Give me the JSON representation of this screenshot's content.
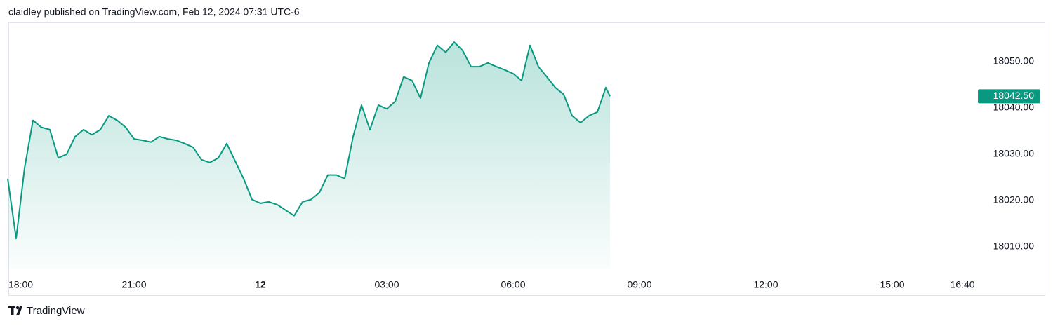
{
  "header": "claidley published on TradingView.com, Feb 12, 2024 07:31 UTC-6",
  "footer": {
    "brand": "TradingView"
  },
  "chart_data": {
    "type": "area",
    "color": "#089981",
    "x": [
      18,
      18.2,
      18.4,
      18.6,
      18.8,
      19,
      19.2,
      19.4,
      19.6,
      19.8,
      20,
      20.2,
      20.4,
      20.6,
      20.8,
      21,
      21.2,
      21.4,
      21.6,
      21.8,
      22,
      22.2,
      22.4,
      22.6,
      22.8,
      23,
      23.2,
      23.4,
      23.6,
      23.8,
      24,
      24.2,
      24.4,
      24.6,
      24.8,
      25,
      25.2,
      25.4,
      25.6,
      25.8,
      26,
      26.2,
      26.4,
      26.6,
      26.8,
      27,
      27.2,
      27.4,
      27.6,
      27.8,
      28,
      28.2,
      28.4,
      28.6,
      28.8,
      29,
      29.2,
      29.4,
      29.6,
      29.8,
      30,
      30.2,
      30.4,
      30.6,
      30.8,
      31,
      31.2,
      31.4,
      31.6,
      31.8,
      32,
      32.2,
      32.3
    ],
    "values": [
      18024.7,
      18011.8,
      18027.0,
      18037.3,
      18035.8,
      18035.3,
      18029.2,
      18030.0,
      18033.8,
      18035.3,
      18034.2,
      18035.3,
      18038.3,
      18037.3,
      18035.8,
      18033.3,
      18033.0,
      18032.6,
      18033.8,
      18033.3,
      18033.0,
      18032.3,
      18031.5,
      18028.8,
      18028.2,
      18029.2,
      18032.3,
      18028.5,
      18024.7,
      18020.2,
      18019.4,
      18019.7,
      18019.1,
      18017.9,
      18016.7,
      18019.7,
      18020.2,
      18021.7,
      18025.5,
      18025.5,
      18024.7,
      18033.8,
      18040.6,
      18035.3,
      18040.6,
      18039.8,
      18041.4,
      18046.7,
      18045.9,
      18042.1,
      18049.7,
      18053.5,
      18052.0,
      18054.2,
      18052.4,
      18048.9,
      18048.9,
      18049.7,
      18048.9,
      18048.2,
      18047.4,
      18045.9,
      18053.5,
      18048.9,
      18046.7,
      18044.4,
      18042.9,
      18038.3,
      18036.8,
      18038.3,
      18039.1,
      18044.4,
      18042.5
    ],
    "last_price": {
      "value": 18042.5,
      "label": "18042.50"
    },
    "xlim": [
      18,
      41
    ],
    "xticks": [
      {
        "value": 18,
        "label": "18:00"
      },
      {
        "value": 21,
        "label": "21:00"
      },
      {
        "value": 24,
        "label": "12"
      },
      {
        "value": 27,
        "label": "03:00"
      },
      {
        "value": 30,
        "label": "06:00"
      },
      {
        "value": 33,
        "label": "09:00"
      },
      {
        "value": 36,
        "label": "12:00"
      },
      {
        "value": 39,
        "label": "15:00"
      },
      {
        "value": 40.667,
        "label": "16:40"
      }
    ],
    "ylim": [
      18005.3,
      18058.3
    ],
    "yticks": [
      {
        "value": 18010,
        "label": "18010.00"
      },
      {
        "value": 18020,
        "label": "18020.00"
      },
      {
        "value": 18030,
        "label": "18030.00"
      },
      {
        "value": 18040,
        "label": "18040.00"
      },
      {
        "value": 18050,
        "label": "18050.00"
      }
    ]
  }
}
